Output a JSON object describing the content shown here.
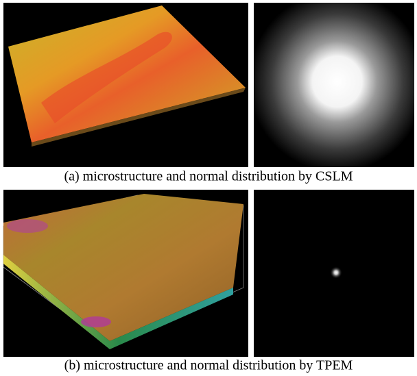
{
  "figure": {
    "panels": [
      {
        "caption": "(a) microstructure and normal distribution by CSLM"
      },
      {
        "caption": "(b) microstructure and normal distribution by TPEM"
      }
    ]
  }
}
